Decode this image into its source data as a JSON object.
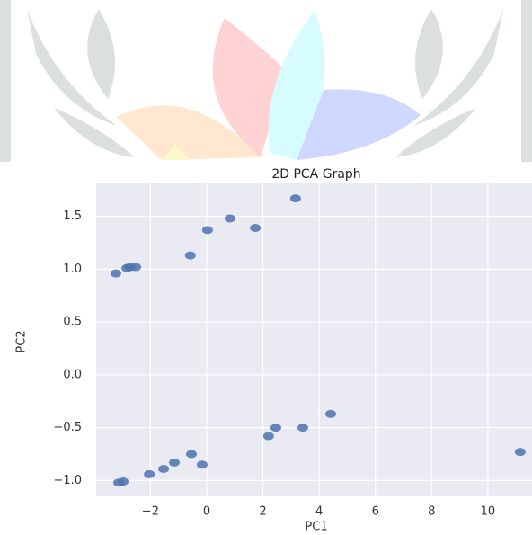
{
  "chart_data": {
    "type": "scatter",
    "title": "2D PCA Graph",
    "x_label": "PC1",
    "y_label": "PC2",
    "x": [
      3.16,
      0.83,
      0.03,
      1.73,
      -0.58,
      -3.23,
      -2.84,
      -2.72,
      -2.52,
      4.41,
      3.42,
      2.46,
      2.2,
      11.15,
      -0.54,
      -1.15,
      -0.16,
      -1.53,
      -2.04,
      -3.13,
      -2.97
    ],
    "values": [
      1.67,
      1.48,
      1.37,
      1.39,
      1.13,
      0.96,
      1.01,
      1.02,
      1.02,
      -0.37,
      -0.5,
      -0.5,
      -0.58,
      -0.73,
      -0.75,
      -0.83,
      -0.85,
      -0.89,
      -0.94,
      -1.02,
      -1.01
    ],
    "color": "#4c72b0",
    "xlim": [
      -3.93,
      11.57
    ],
    "ylim": [
      -1.15,
      1.82
    ],
    "xticks": [
      {
        "value": -2,
        "label": "−2"
      },
      0,
      2,
      4,
      6,
      8,
      10
    ],
    "yticks": [
      {
        "value": -1,
        "label": "−1.0"
      },
      {
        "value": -0.5,
        "label": "−0.5"
      },
      {
        "value": 0,
        "label": "0.0"
      },
      {
        "value": 0.5,
        "label": "0.5"
      },
      {
        "value": 1,
        "label": "1.0"
      },
      {
        "value": 1.5,
        "label": "1.5"
      }
    ],
    "grid": true
  }
}
